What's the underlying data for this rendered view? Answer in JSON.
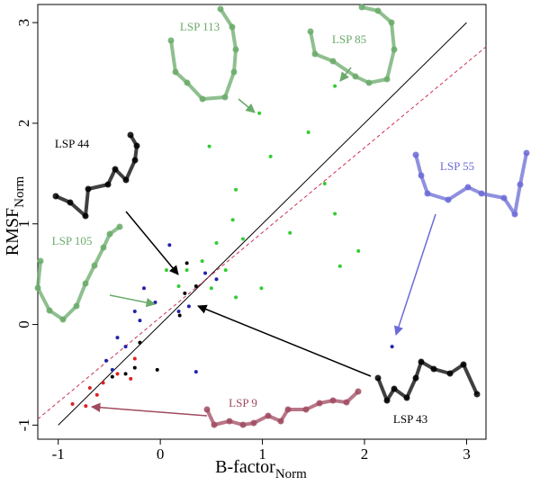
{
  "chart_data": {
    "type": "scatter",
    "x_label": "B-factor",
    "x_label_sub": "Norm",
    "y_label": "RMSF",
    "y_label_sub": "Norm",
    "xlim": [
      -1.2,
      3.19
    ],
    "ylim": [
      -1.14,
      3.18
    ],
    "xticks": [
      -1,
      0,
      1,
      2,
      3
    ],
    "yticks": [
      -1,
      0,
      1,
      2,
      3
    ],
    "grid": false,
    "series": [
      {
        "color": "#33cc33",
        "x": [
          0.97,
          0.48,
          1.08,
          1.45,
          1.71,
          1.76,
          1.94,
          1.27,
          0.74,
          0.71,
          0.81,
          0.55,
          0.41,
          0.64,
          0.74,
          0.5,
          0.26,
          0.18,
          0.06,
          0.99,
          1.71,
          1.61
        ],
        "values": [
          2.1,
          1.77,
          1.67,
          1.91,
          1.1,
          0.58,
          0.73,
          0.91,
          1.34,
          1.04,
          0.85,
          0.81,
          0.63,
          0.54,
          0.27,
          0.36,
          0.54,
          0.38,
          0.54,
          0.36,
          2.37,
          1.4
        ]
      },
      {
        "color": "#2222aa",
        "x": [
          2.27,
          0.09,
          -0.16,
          -0.25,
          -0.42,
          -0.34,
          -0.53,
          -0.47,
          0.18,
          0.35,
          0.55,
          0.44,
          0.28,
          -0.2,
          -0.05
        ],
        "values": [
          -0.22,
          0.79,
          0.36,
          0.13,
          -0.13,
          -0.22,
          -0.36,
          -0.45,
          0.13,
          -0.47,
          0.45,
          0.51,
          0.18,
          0.04,
          0.22
        ]
      },
      {
        "color": "#000000",
        "x": [
          0.24,
          0.35,
          0.26,
          -0.25,
          -0.03,
          -0.47,
          -0.34,
          0.19,
          -0.2
        ],
        "values": [
          0.31,
          0.38,
          0.61,
          -0.43,
          -0.45,
          -0.52,
          -0.49,
          0.09,
          -0.18
        ]
      },
      {
        "color": "#dd2222",
        "x": [
          -0.86,
          -0.73,
          -0.69,
          -0.56,
          -0.42,
          -0.25,
          -0.29,
          -0.62
        ],
        "values": [
          -0.79,
          -0.81,
          -0.63,
          -0.58,
          -0.49,
          -0.34,
          -0.54,
          -0.7
        ]
      }
    ],
    "lines": [
      {
        "color": "#000000",
        "dashed": false,
        "x": [
          -1,
          3
        ],
        "values": [
          -1,
          3
        ]
      },
      {
        "color": "#cc3355",
        "dashed": true,
        "x": [
          -1.2,
          3.19
        ],
        "values": [
          -0.94,
          2.76
        ]
      }
    ],
    "annotations": [
      {
        "text": "LSP 113",
        "color": "#6aaa6a"
      },
      {
        "text": "LSP 85",
        "color": "#6aaa6a"
      },
      {
        "text": "LSP 44",
        "color": "#000000"
      },
      {
        "text": "LSP 105",
        "color": "#6aaa6a"
      },
      {
        "text": "LSP 55",
        "color": "#6b6bd6"
      },
      {
        "text": "LSP 9",
        "color": "#a04a60"
      },
      {
        "text": "LSP 43",
        "color": "#000000"
      }
    ]
  }
}
